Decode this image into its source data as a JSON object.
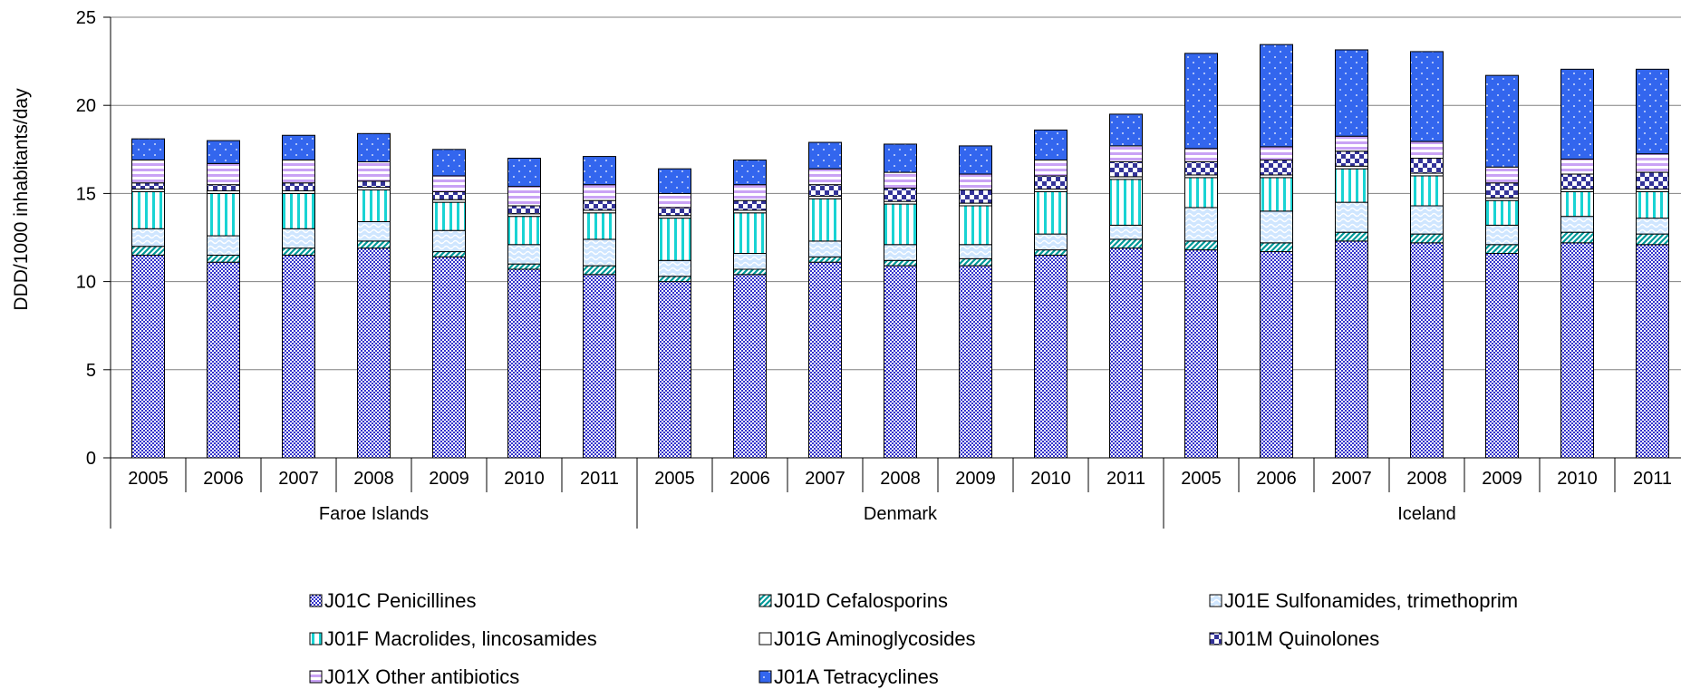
{
  "chart_data": {
    "type": "bar",
    "stacked": true,
    "title": "",
    "xlabel": "",
    "ylabel": "DDD/1000 inhabitants/day",
    "ylim": [
      0,
      25
    ],
    "yticks": [
      0,
      5,
      10,
      15,
      20,
      25
    ],
    "grid": true,
    "legend_position": "bottom",
    "groups": [
      {
        "name": "Faroe Islands",
        "categories": [
          "2005",
          "2006",
          "2007",
          "2008",
          "2009",
          "2010",
          "2011"
        ]
      },
      {
        "name": "Denmark",
        "categories": [
          "2005",
          "2006",
          "2007",
          "2008",
          "2009",
          "2010",
          "2011"
        ]
      },
      {
        "name": "Iceland",
        "categories": [
          "2005",
          "2006",
          "2007",
          "2008",
          "2009",
          "2010",
          "2011"
        ]
      }
    ],
    "series": [
      {
        "name": "J01C Penicillines",
        "color": "#3333cc",
        "pattern": "checker",
        "values": [
          11.5,
          11.1,
          11.5,
          11.9,
          11.4,
          10.7,
          10.4,
          10.0,
          10.4,
          11.1,
          10.9,
          10.9,
          11.5,
          11.9,
          11.8,
          11.7,
          12.3,
          12.2,
          11.6,
          12.2,
          12.1
        ]
      },
      {
        "name": "J01D Cefalosporins",
        "color": "#009999",
        "pattern": "diagonal",
        "values": [
          0.5,
          0.4,
          0.4,
          0.4,
          0.3,
          0.3,
          0.5,
          0.3,
          0.3,
          0.3,
          0.3,
          0.4,
          0.3,
          0.5,
          0.5,
          0.5,
          0.5,
          0.5,
          0.5,
          0.6,
          0.6
        ]
      },
      {
        "name": "J01E Sulfonamides, trimethoprim",
        "color": "#99ccff",
        "pattern": "wave",
        "values": [
          1.0,
          1.1,
          1.1,
          1.1,
          1.2,
          1.1,
          1.5,
          0.9,
          0.9,
          0.9,
          0.9,
          0.8,
          0.9,
          0.8,
          1.9,
          1.8,
          1.7,
          1.6,
          1.1,
          0.9,
          0.9
        ]
      },
      {
        "name": "J01F Macrolides, lincosamides",
        "color": "#00cccc",
        "pattern": "vertical",
        "values": [
          2.1,
          2.4,
          2.0,
          1.8,
          1.6,
          1.6,
          1.5,
          2.4,
          2.3,
          2.4,
          2.3,
          2.2,
          2.4,
          2.6,
          1.7,
          1.9,
          1.9,
          1.7,
          1.4,
          1.4,
          1.5
        ]
      },
      {
        "name": "J01G Aminoglycosides",
        "color": "#dddddd",
        "pattern": "none",
        "values": [
          0.15,
          0.15,
          0.15,
          0.15,
          0.15,
          0.15,
          0.15,
          0.15,
          0.15,
          0.15,
          0.15,
          0.15,
          0.15,
          0.15,
          0.15,
          0.15,
          0.15,
          0.15,
          0.15,
          0.15,
          0.15
        ]
      },
      {
        "name": "J01M Quinolones",
        "color": "#333399",
        "pattern": "bigcheck",
        "values": [
          0.35,
          0.35,
          0.45,
          0.35,
          0.45,
          0.45,
          0.55,
          0.45,
          0.55,
          0.65,
          0.75,
          0.75,
          0.75,
          0.85,
          0.75,
          0.85,
          0.85,
          0.85,
          0.85,
          0.85,
          0.95
        ]
      },
      {
        "name": "J01X Other antibiotics",
        "color": "#cc99ff",
        "pattern": "horizontal",
        "values": [
          1.3,
          1.2,
          1.3,
          1.1,
          0.9,
          1.1,
          0.9,
          0.8,
          0.9,
          0.9,
          0.9,
          0.9,
          0.9,
          0.9,
          0.75,
          0.75,
          0.85,
          0.95,
          0.9,
          0.85,
          1.05
        ]
      },
      {
        "name": "J01A Tetracyclines",
        "color": "#3366ee",
        "pattern": "dots",
        "values": [
          1.2,
          1.3,
          1.4,
          1.6,
          1.5,
          1.6,
          1.6,
          1.4,
          1.4,
          1.5,
          1.6,
          1.6,
          1.7,
          1.8,
          5.4,
          5.8,
          4.9,
          5.1,
          5.2,
          5.1,
          4.8
        ]
      }
    ]
  }
}
